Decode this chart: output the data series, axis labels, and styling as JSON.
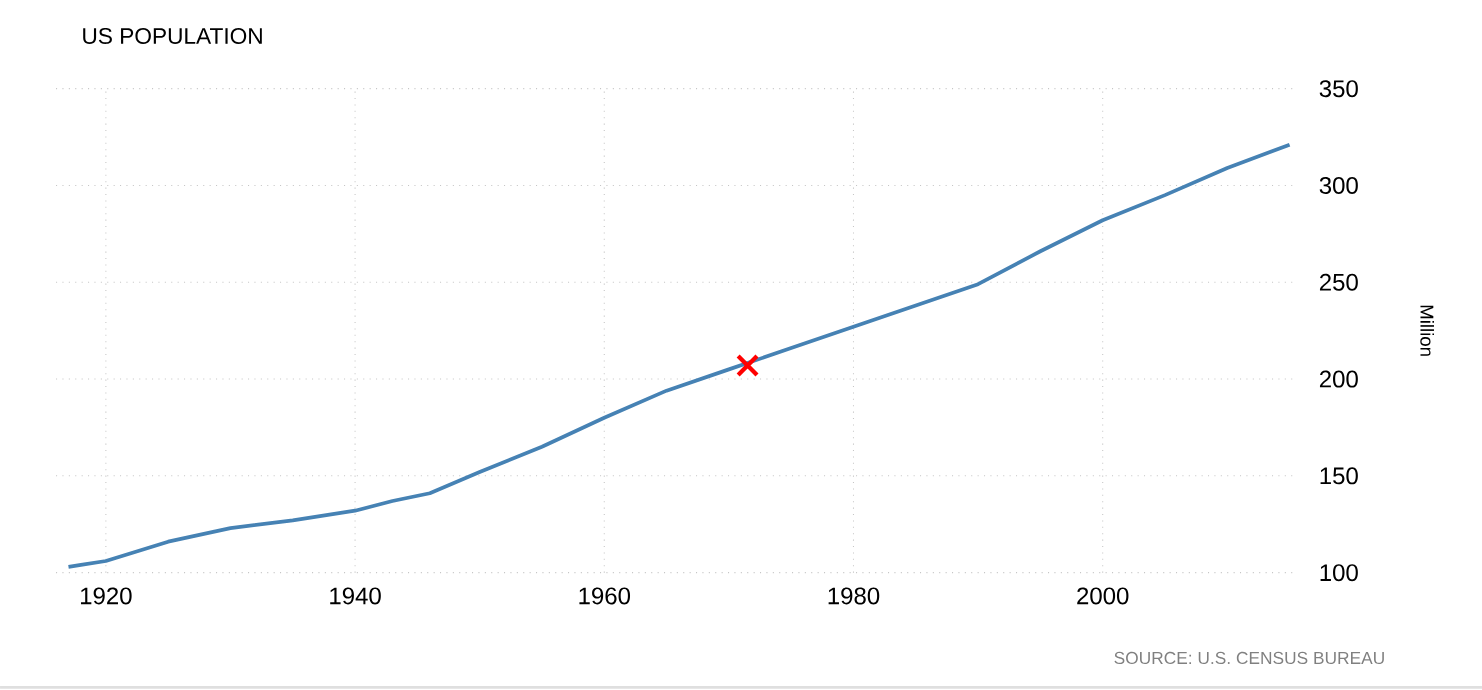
{
  "chart_data": {
    "type": "line",
    "title": "US POPULATION",
    "ylabel": "Million",
    "annotations": [
      "SOURCE: U.S. CENSUS BUREAU"
    ],
    "xlim": [
      1916,
      2015.3
    ],
    "ylim": [
      100,
      350
    ],
    "xticks": [
      1920,
      1940,
      1960,
      1980,
      2000
    ],
    "yticks": [
      100,
      150,
      200,
      250,
      300,
      350
    ],
    "grid": true,
    "series": [
      {
        "color": "#4682b4",
        "x": [
          1917,
          1918,
          1920,
          1925,
          1930,
          1935,
          1940,
          1943,
          1946,
          1950,
          1955,
          1960,
          1965,
          1970,
          1975,
          1980,
          1985,
          1990,
          1995,
          2000,
          2005,
          2010,
          2015
        ],
        "values": [
          103,
          104,
          106,
          116,
          123,
          127,
          132,
          137,
          141,
          152,
          165,
          180,
          194,
          205,
          216,
          227,
          238,
          249,
          266,
          282,
          295,
          309,
          321
        ]
      },
      {
        "type": "scatter",
        "marker": "cross",
        "color": "#ff0000",
        "x": [
          1971.5
        ],
        "values": [
          207
        ]
      }
    ]
  }
}
